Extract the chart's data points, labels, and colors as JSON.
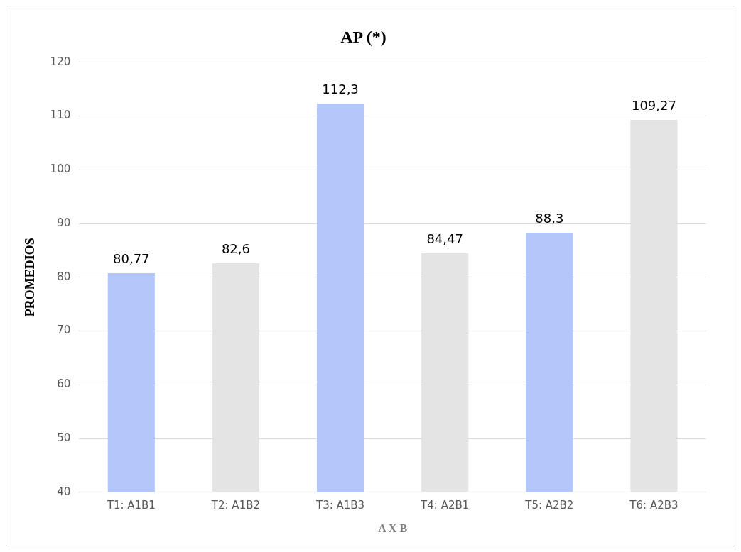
{
  "chart_data": {
    "type": "bar",
    "title": "AP (*)",
    "xlabel": "A X B",
    "ylabel": "PROMEDIOS",
    "categories": [
      "T1: A1B1",
      "T2: A1B2",
      "T3: A1B3",
      "T4: A2B1",
      "T5: A2B2",
      "T6: A2B3"
    ],
    "values": [
      80.77,
      82.6,
      112.3,
      84.47,
      88.3,
      109.27
    ],
    "value_labels": [
      "80,77",
      "82,6",
      "112,3",
      "84,47",
      "88,3",
      "109,27"
    ],
    "colors": [
      "#b4c7fb",
      "#e4e4e4",
      "#b4c7fb",
      "#e4e4e4",
      "#b4c7fb",
      "#e4e4e4"
    ],
    "ylim": [
      40,
      120
    ],
    "yticks": [
      40,
      50,
      60,
      70,
      80,
      90,
      100,
      110,
      120
    ],
    "grid": "y",
    "legend": false
  }
}
